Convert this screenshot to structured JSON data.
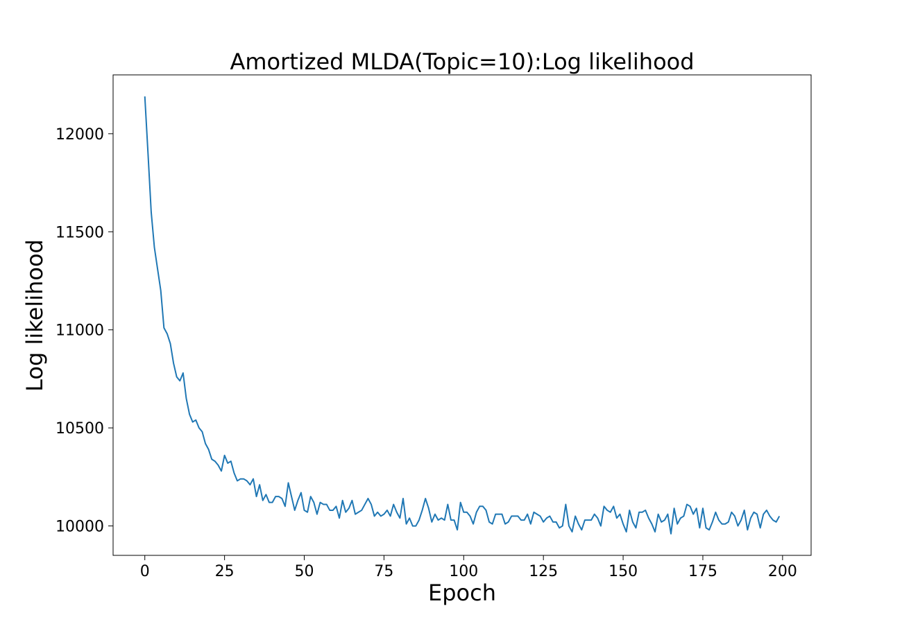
{
  "chart_data": {
    "type": "line",
    "title": "Amortized MLDA(Topic=10):Log likelihood",
    "xlabel": "Epoch",
    "ylabel": "Log likelihood",
    "xlim": [
      -9.95,
      208.95
    ],
    "ylim": [
      9850,
      12300
    ],
    "xticks": [
      0,
      25,
      50,
      75,
      100,
      125,
      150,
      175,
      200
    ],
    "yticks": [
      10000,
      10500,
      11000,
      11500,
      12000
    ],
    "grid": false,
    "color": "#1f77b4",
    "series": [
      {
        "x": [
          0,
          1,
          2,
          3,
          4,
          5,
          6,
          7,
          8,
          9,
          10,
          11,
          12,
          13,
          14,
          15,
          16,
          17,
          18,
          19,
          20,
          21,
          22,
          23,
          24,
          25,
          26,
          27,
          28,
          29,
          30,
          31,
          32,
          33,
          34,
          35,
          36,
          37,
          38,
          39,
          40,
          41,
          42,
          43,
          44,
          45,
          46,
          47,
          48,
          49,
          50,
          51,
          52,
          53,
          54,
          55,
          56,
          57,
          58,
          59,
          60,
          61,
          62,
          63,
          64,
          65,
          66,
          67,
          68,
          69,
          70,
          71,
          72,
          73,
          74,
          75,
          76,
          77,
          78,
          79,
          80,
          81,
          82,
          83,
          84,
          85,
          86,
          87,
          88,
          89,
          90,
          91,
          92,
          93,
          94,
          95,
          96,
          97,
          98,
          99,
          100,
          101,
          102,
          103,
          104,
          105,
          106,
          107,
          108,
          109,
          110,
          111,
          112,
          113,
          114,
          115,
          116,
          117,
          118,
          119,
          120,
          121,
          122,
          123,
          124,
          125,
          126,
          127,
          128,
          129,
          130,
          131,
          132,
          133,
          134,
          135,
          136,
          137,
          138,
          139,
          140,
          141,
          142,
          143,
          144,
          145,
          146,
          147,
          148,
          149,
          150,
          151,
          152,
          153,
          154,
          155,
          156,
          157,
          158,
          159,
          160,
          161,
          162,
          163,
          164,
          165,
          166,
          167,
          168,
          169,
          170,
          171,
          172,
          173,
          174,
          175,
          176,
          177,
          178,
          179,
          180,
          181,
          182,
          183,
          184,
          185,
          186,
          187,
          188,
          189,
          190,
          191,
          192,
          193,
          194,
          195,
          196,
          197,
          198,
          199
        ],
        "values": [
          12190,
          11900,
          11600,
          11420,
          11310,
          11200,
          11010,
          10980,
          10930,
          10830,
          10760,
          10740,
          10780,
          10650,
          10570,
          10530,
          10540,
          10500,
          10480,
          10420,
          10390,
          10340,
          10330,
          10310,
          10280,
          10360,
          10320,
          10330,
          10270,
          10230,
          10240,
          10240,
          10230,
          10210,
          10240,
          10150,
          10210,
          10130,
          10160,
          10120,
          10120,
          10150,
          10150,
          10140,
          10100,
          10220,
          10150,
          10080,
          10130,
          10170,
          10080,
          10070,
          10150,
          10120,
          10060,
          10120,
          10110,
          10110,
          10080,
          10080,
          10100,
          10040,
          10130,
          10070,
          10090,
          10130,
          10060,
          10070,
          10080,
          10110,
          10140,
          10110,
          10050,
          10070,
          10050,
          10060,
          10080,
          10050,
          10110,
          10070,
          10040,
          10140,
          10010,
          10040,
          10000,
          10000,
          10030,
          10080,
          10140,
          10090,
          10020,
          10060,
          10030,
          10040,
          10030,
          10110,
          10030,
          10030,
          9980,
          10120,
          10070,
          10070,
          10050,
          10010,
          10070,
          10100,
          10100,
          10080,
          10020,
          10010,
          10060,
          10060,
          10060,
          10010,
          10020,
          10050,
          10050,
          10050,
          10030,
          10030,
          10060,
          10010,
          10070,
          10060,
          10050,
          10020,
          10040,
          10050,
          10020,
          10020,
          9990,
          10000,
          10110,
          10000,
          9970,
          10050,
          10010,
          9980,
          10030,
          10030,
          10030,
          10060,
          10040,
          10000,
          10100,
          10080,
          10070,
          10100,
          10040,
          10060,
          10010,
          9970,
          10080,
          10020,
          9990,
          10070,
          10070,
          10080,
          10040,
          10010,
          9970,
          10060,
          10020,
          10030,
          10060,
          9960,
          10090,
          10010,
          10040,
          10050,
          10110,
          10100,
          10060,
          10090,
          9990,
          10090,
          9990,
          9980,
          10020,
          10070,
          10030,
          10010,
          10010,
          10020,
          10070,
          10050,
          10000,
          10030,
          10080,
          9980,
          10040,
          10070,
          10060,
          9990,
          10060,
          10080,
          10050,
          10030,
          10020,
          10050
        ]
      }
    ]
  }
}
